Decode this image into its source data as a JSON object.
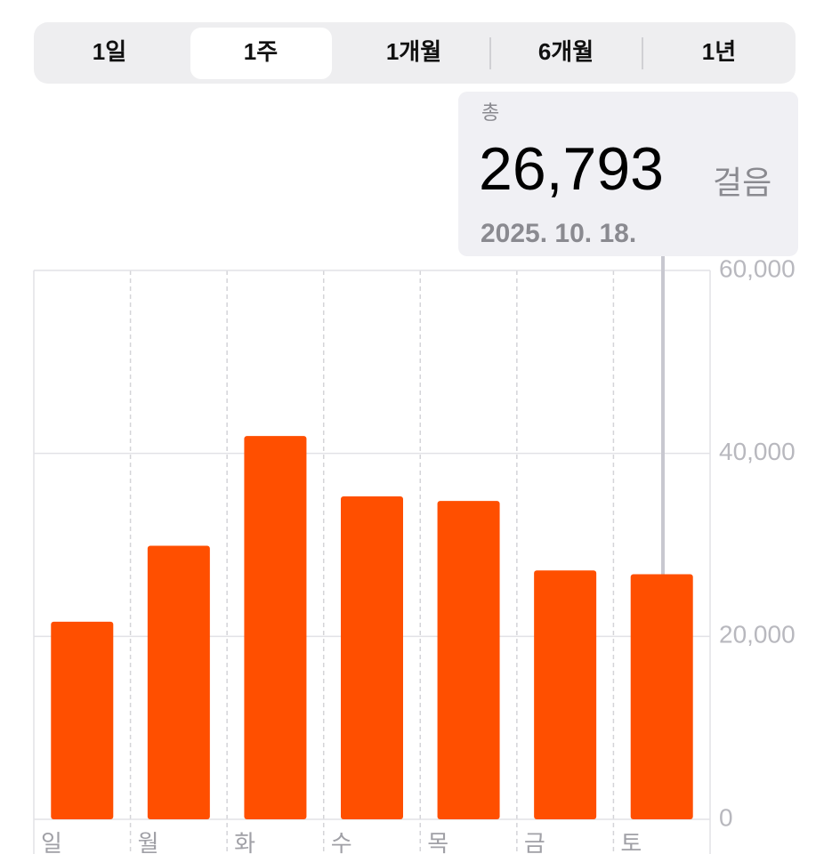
{
  "tabs": [
    "1일",
    "1주",
    "1개월",
    "6개월",
    "1년"
  ],
  "tooltip": {
    "label": "총",
    "value": 26793,
    "value_label": "26,793",
    "unit": "걸음",
    "date": "2025. 10. 18."
  },
  "chart_data": {
    "type": "bar",
    "categories": [
      "일",
      "월",
      "화",
      "수",
      "목",
      "금",
      "토"
    ],
    "values": [
      21600,
      29900,
      41900,
      35300,
      34800,
      27200,
      26793
    ],
    "color": "#ff4f00",
    "ylim": [
      0,
      60000
    ],
    "yticks": [
      0,
      {
        "value": 20000,
        "label": "20,000"
      },
      {
        "value": 40000,
        "label": "40,000"
      },
      {
        "value": 60000,
        "label": "60,000"
      }
    ],
    "grid": true
  }
}
